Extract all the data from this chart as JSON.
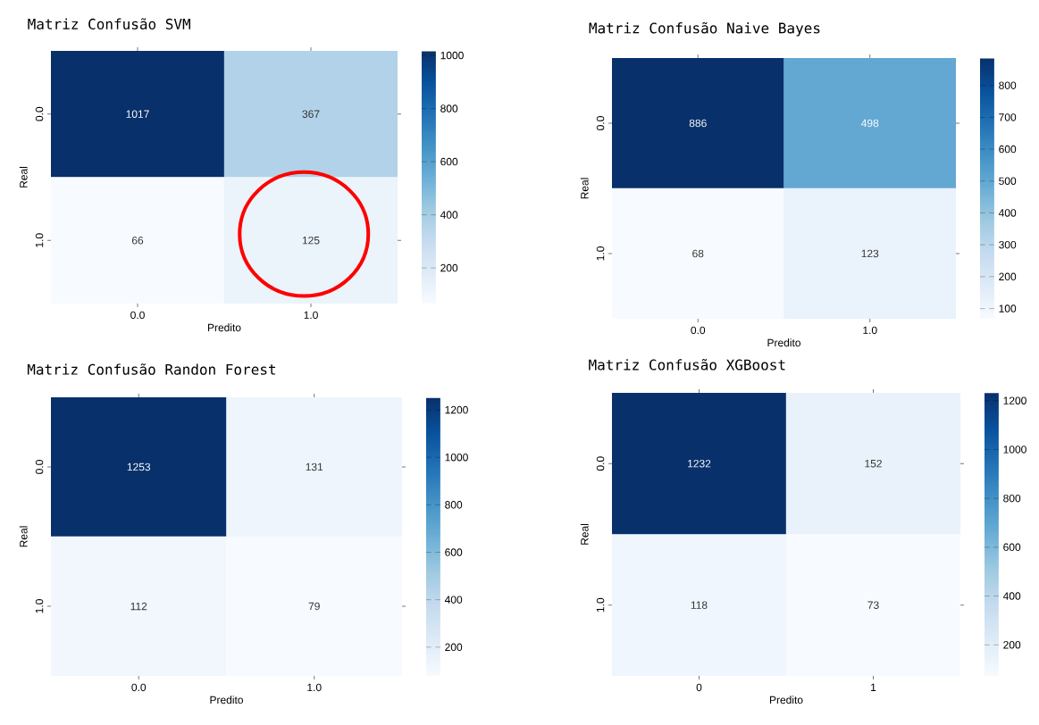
{
  "chart_data": [
    {
      "type": "heatmap",
      "title": "Matriz Confusão SVM",
      "xlabel": "Predito",
      "ylabel": "Real",
      "categories": [
        "0.0",
        "1.0"
      ],
      "y_categories": [
        "0.0",
        "1.0"
      ],
      "cells": [
        [
          1017,
          367
        ],
        [
          66,
          125
        ]
      ],
      "data_labels": true,
      "clim": [
        66,
        1017
      ],
      "cticks": [
        200,
        400,
        600,
        800,
        1000
      ]
    },
    {
      "type": "heatmap",
      "title": "Matriz Confusão Naive Bayes",
      "xlabel": "Predito",
      "ylabel": "Real",
      "categories": [
        "0.0",
        "1.0"
      ],
      "y_categories": [
        "0.0",
        "1.0"
      ],
      "cells": [
        [
          886,
          498
        ],
        [
          68,
          123
        ]
      ],
      "data_labels": true,
      "clim": [
        68,
        886
      ],
      "cticks": [
        100,
        200,
        300,
        400,
        500,
        600,
        700,
        800
      ]
    },
    {
      "type": "heatmap",
      "title": "Matriz Confusão Randon Forest",
      "xlabel": "Predito",
      "ylabel": "Real",
      "categories": [
        "0.0",
        "1.0"
      ],
      "y_categories": [
        "0.0",
        "1.0"
      ],
      "cells": [
        [
          1253,
          131
        ],
        [
          112,
          79
        ]
      ],
      "data_labels": true,
      "clim": [
        79,
        1253
      ],
      "cticks": [
        200,
        400,
        600,
        800,
        1000,
        1200
      ]
    },
    {
      "type": "heatmap",
      "title": "Matriz Confusão XGBoost",
      "xlabel": "Predito",
      "ylabel": "Real",
      "categories": [
        "0",
        "1"
      ],
      "y_categories": [
        "0.0",
        "1.0"
      ],
      "cells": [
        [
          1232,
          152
        ],
        [
          118,
          73
        ]
      ],
      "data_labels": true,
      "clim": [
        73,
        1232
      ],
      "cticks": [
        200,
        400,
        600,
        800,
        1000,
        1200
      ]
    }
  ]
}
